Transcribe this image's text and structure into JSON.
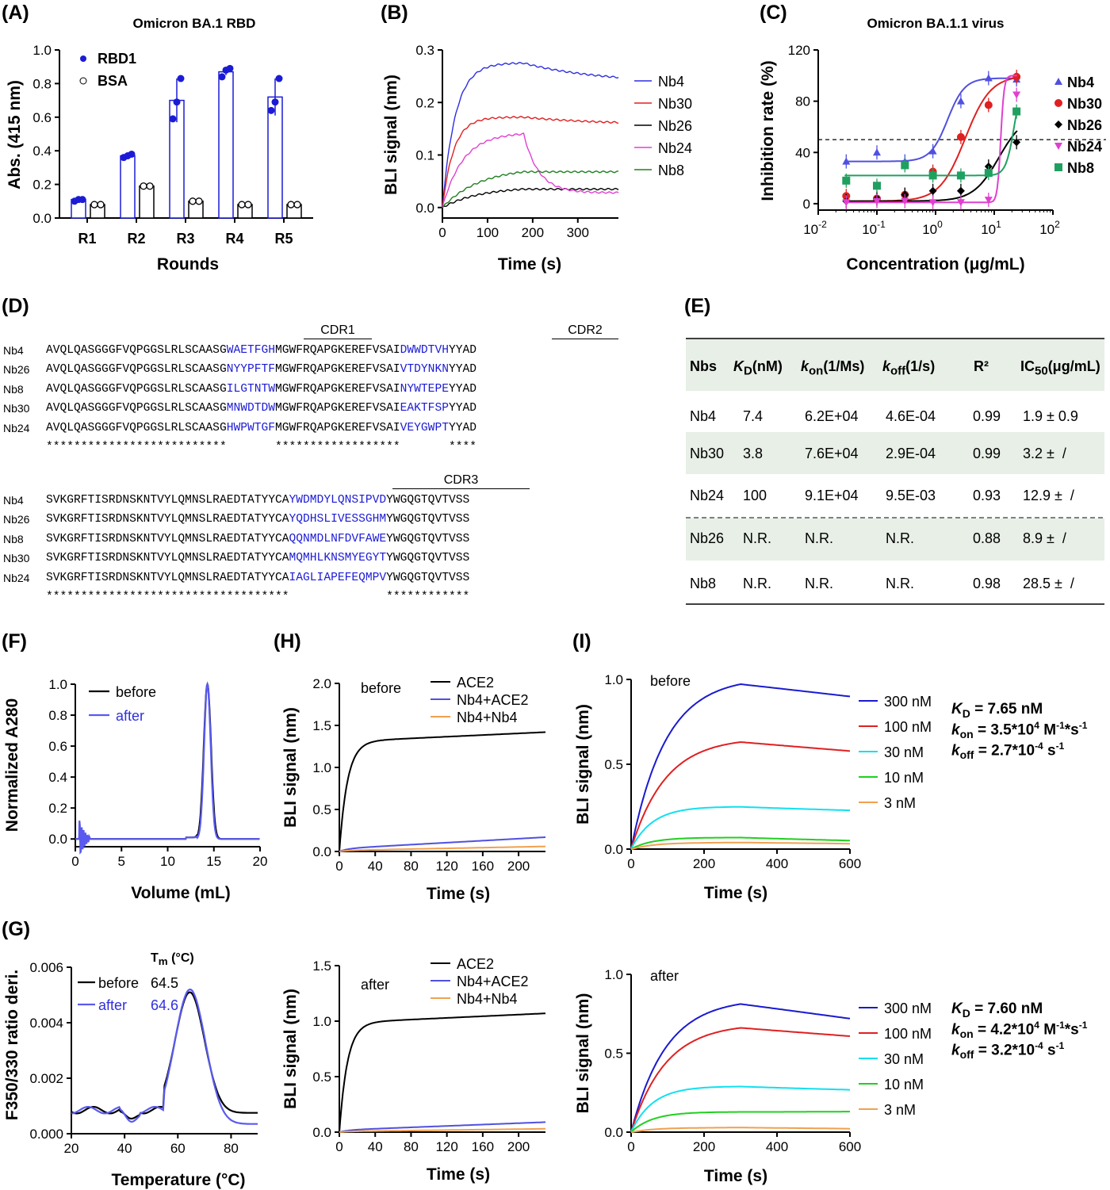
{
  "panels": {
    "A": {
      "label": "(A)",
      "title": "Omicron BA.1 RBD",
      "xlabel": "Rounds",
      "ylabel": "Abs. (415 nm)",
      "yticks": [
        "0.0",
        "0.2",
        "0.4",
        "0.6",
        "0.8",
        "1.0"
      ],
      "legend": [
        "RBD1",
        "BSA"
      ]
    },
    "B": {
      "label": "(B)",
      "xlabel": "Time (s)",
      "ylabel": "BLI signal (nm)",
      "yticks": [
        "0.0",
        "0.1",
        "0.2",
        "0.3"
      ],
      "xticks": [
        "0",
        "100",
        "200",
        "300"
      ],
      "legend": [
        "Nb4",
        "Nb30",
        "Nb26",
        "Nb24",
        "Nb8"
      ]
    },
    "C": {
      "label": "(C)",
      "title": "Omicron BA.1.1 virus",
      "xlabel": "Concentration (μg/mL)",
      "ylabel": "Inhibition rate (%)",
      "yticks": [
        "0",
        "40",
        "80",
        "120"
      ],
      "legend": [
        "Nb4",
        "Nb30",
        "Nb26",
        "Nb24",
        "Nb8"
      ]
    },
    "D": {
      "label": "(D)",
      "cdr1": "CDR1",
      "cdr2": "CDR2",
      "cdr3": "CDR3",
      "rows1": [
        {
          "name": "Nb4",
          "a": "AVQLQASGGGFVQPGGSLRLSCAASG",
          "c1": "WAETFGH",
          "b": "MGWFRQAPGKEREFVSAI",
          "c2": "DWWDTVH",
          "e": "YYAD"
        },
        {
          "name": "Nb26",
          "a": "AVQLQASGGGFVQPGGSLRLSCAASG",
          "c1": "NYYPFTF",
          "b": "MGWFRQAPGKEREFVSAI",
          "c2": "VTDYNKN",
          "e": "YYAD"
        },
        {
          "name": "Nb8",
          "a": "AVQLQASGGGFVQPGGSLRLSCAASG",
          "c1": "ILGTNTW",
          "b": "MGWFRQAPGKEREFVSAI",
          "c2": "NYWTEPE",
          "e": "YYAD"
        },
        {
          "name": "Nb30",
          "a": "AVQLQASGGGFVQPGGSLRLSCAASG",
          "c1": "MNWDTDW",
          "b": "MGWFRQAPGKEREFVSAI",
          "c2": "EAKTFSP",
          "e": "YYAD"
        },
        {
          "name": "Nb24",
          "a": "AVQLQASGGGFVQPGGSLRLSCAASG",
          "c1": "HWPWTGF",
          "b": "MGWFRQAPGKEREFVSAI",
          "c2": "VEYGWPT",
          "e": "YYAD"
        }
      ],
      "cons1": "**************************       ******************       ****",
      "rows2": [
        {
          "name": "Nb4",
          "a": "SVKGRFTISRDNSKNTVYLQMNSLRAEDTATYYCA",
          "c3": "YWDMDYLQNSIPVD",
          "e": "YWGQGTQVTVSS"
        },
        {
          "name": "Nb26",
          "a": "SVKGRFTISRDNSKNTVYLQMNSLRAEDTATYYCA",
          "c3": "YQDHSLIVESSGHM",
          "e": "YWGQGTQVTVSS"
        },
        {
          "name": "Nb8",
          "a": "SVKGRFTISRDNSKNTVYLQMNSLRAEDTATYYCA",
          "c3": "QQNMDLNFDVFAWE",
          "e": "YWGQGTQVTVSS"
        },
        {
          "name": "Nb30",
          "a": "SVKGRFTISRDNSKNTVYLQMNSLRAEDTATYYCA",
          "c3": "MQMHLKNSMYEGYT",
          "e": "YWGQGTQVTVSS"
        },
        {
          "name": "Nb24",
          "a": "SVKGRFTISRDNSKNTVYLQMNSLRAEDTATYYCA",
          "c3": "IAGLIAPEFEQMPV",
          "e": "YWGQGTQVTVSS"
        }
      ],
      "cons2": "***********************************              ************"
    },
    "E": {
      "label": "(E)",
      "headers": [
        "Nbs",
        "K",
        "D",
        "(nM)",
        "k",
        "on",
        "(1/Ms)",
        "k",
        "off",
        "(1/s)",
        "R²",
        "IC",
        "50",
        "(μg/mL)"
      ],
      "rows": [
        [
          "Nb4",
          "7.4",
          "6.2E+04",
          "4.6E-04",
          "0.99",
          "1.9 ± 0.9"
        ],
        [
          "Nb30",
          "3.8",
          "7.6E+04",
          "2.9E-04",
          "0.99",
          "3.2 ±  /"
        ],
        [
          "Nb24",
          "100",
          "9.1E+04",
          "9.5E-03",
          "0.93",
          "12.9 ±  /"
        ],
        [
          "Nb26",
          "N.R.",
          "N.R.",
          "N.R.",
          "0.88",
          "8.9 ±  /"
        ],
        [
          "Nb8",
          "N.R.",
          "N.R.",
          "N.R.",
          "0.98",
          "28.5 ±  /"
        ]
      ]
    },
    "F": {
      "label": "(F)",
      "xlabel": "Volume (mL)",
      "ylabel": "Normalized A280",
      "yticks": [
        "0.0",
        "0.2",
        "0.4",
        "0.6",
        "0.8",
        "1.0"
      ],
      "xticks": [
        "0",
        "5",
        "10",
        "15",
        "20"
      ],
      "legend": [
        "before",
        "after"
      ]
    },
    "G": {
      "label": "(G)",
      "xlabel": "Temperature (°C)",
      "ylabel": "F350/330 ratio deri.",
      "yticks": [
        "0.000",
        "0.002",
        "0.004",
        "0.006"
      ],
      "xticks": [
        "20",
        "40",
        "60",
        "80"
      ],
      "tm_header": "T",
      "tm_sub": "m",
      "tm_unit": " (°C)",
      "legend": [
        "before",
        "after"
      ],
      "tm": [
        "64.5",
        "64.6"
      ]
    },
    "H": {
      "label": "(H)",
      "xlabel": "Time (s)",
      "ylabel": "BLI signal (nm)",
      "state_top": "before",
      "state_bottom": "after",
      "yticks_top": [
        "0.0",
        "0.5",
        "1.0",
        "1.5",
        "2.0"
      ],
      "yticks_bottom": [
        "0.0",
        "0.5",
        "1.0",
        "1.5"
      ],
      "xticks": [
        "0",
        "40",
        "80",
        "120",
        "160",
        "200"
      ],
      "legend": [
        "ACE2",
        "Nb4+ACE2",
        "Nb4+Nb4"
      ]
    },
    "I": {
      "label": "(I)",
      "xlabel": "Time (s)",
      "ylabel": "BLI signal (nm)",
      "state_top": "before",
      "state_bottom": "after",
      "yticks": [
        "0.0",
        "0.5",
        "1.0"
      ],
      "xticks": [
        "0",
        "200",
        "400",
        "600"
      ],
      "legend": [
        "300 nM",
        "100 nM",
        "30 nM",
        "10 nM",
        "3 nM"
      ],
      "fit_top": {
        "kd": " = 7.65 nM",
        "kon_a": " = 3.5*10",
        "kon_e": "4",
        "kon_b": " M",
        "kon_e2": "-1",
        "kon_c": "*s",
        "kon_e3": "-1",
        "koff_a": " = 2.7*10",
        "koff_e": "-4",
        "koff_b": " s",
        "koff_e2": "-1"
      },
      "fit_bottom": {
        "kd": " = 7.60 nM",
        "kon_a": " = 4.2*10",
        "kon_e": "4",
        "kon_b": " M",
        "kon_e2": "-1",
        "kon_c": "*s",
        "kon_e3": "-1",
        "koff_a": " = 3.2*10",
        "koff_e": "-4",
        "koff_b": " s",
        "koff_e2": "-1"
      }
    }
  },
  "colors": {
    "blue": "#2f2fe0",
    "red": "#e02020",
    "black": "#000000",
    "magenta": "#e040d0",
    "green": "#208020",
    "cyan": "#10e0f0",
    "lime": "#20d020",
    "orange": "#f0a050",
    "purple": "#5050e0"
  },
  "chart_data": [
    {
      "panel": "A",
      "type": "bar",
      "categories": [
        "R1",
        "R2",
        "R3",
        "R4",
        "R5"
      ],
      "series": [
        {
          "name": "RBD1",
          "values": [
            0.11,
            0.37,
            0.7,
            0.87,
            0.72
          ],
          "points": [
            [
              0.1,
              0.11,
              0.11
            ],
            [
              0.36,
              0.37,
              0.38
            ],
            [
              0.59,
              0.69,
              0.83
            ],
            [
              0.84,
              0.88,
              0.89
            ],
            [
              0.64,
              0.69,
              0.83
            ]
          ]
        },
        {
          "name": "BSA",
          "values": [
            0.08,
            0.19,
            0.1,
            0.08,
            0.08
          ]
        }
      ],
      "ylim": [
        0,
        1.0
      ]
    },
    {
      "panel": "B",
      "type": "line",
      "xlim": [
        0,
        390
      ],
      "ylim": [
        -0.02,
        0.3
      ],
      "series": [
        {
          "name": "Nb4",
          "peak": 0.275,
          "end": 0.237
        },
        {
          "name": "Nb30",
          "peak": 0.172,
          "end": 0.158
        },
        {
          "name": "Nb26",
          "peak": 0.035,
          "end": 0.035
        },
        {
          "name": "Nb24",
          "peak": 0.14,
          "end": 0.028
        },
        {
          "name": "Nb8",
          "peak": 0.068,
          "end": 0.068
        }
      ]
    },
    {
      "panel": "C",
      "type": "scatter",
      "xscale": "log",
      "xlim": [
        0.01,
        100
      ],
      "ylim": [
        -5,
        120
      ],
      "threshold": 50,
      "x": [
        0.03,
        0.1,
        0.3,
        0.9,
        2.7,
        8,
        24
      ],
      "series": [
        {
          "name": "Nb4",
          "values": [
            33,
            40,
            33,
            41,
            80,
            98,
            97
          ]
        },
        {
          "name": "Nb30",
          "values": [
            6,
            4,
            7,
            25,
            52,
            77,
            99
          ]
        },
        {
          "name": "Nb26",
          "values": [
            2,
            4,
            7,
            10,
            10,
            29,
            48
          ]
        },
        {
          "name": "Nb24",
          "values": [
            1,
            2,
            2,
            1,
            1,
            3,
            85
          ]
        },
        {
          "name": "Nb8",
          "values": [
            18,
            14,
            30,
            22,
            22,
            24,
            72
          ]
        }
      ]
    },
    {
      "panel": "F",
      "type": "line",
      "xlim": [
        0,
        20
      ],
      "ylim": [
        -0.05,
        1.0
      ],
      "series": [
        {
          "name": "before",
          "peak_x": 14.3
        },
        {
          "name": "after",
          "peak_x": 14.3
        }
      ]
    },
    {
      "panel": "G",
      "type": "line",
      "xlim": [
        20,
        90
      ],
      "ylim": [
        0,
        0.006
      ],
      "series": [
        {
          "name": "before",
          "peak_x": 64.5,
          "peak": 0.0051
        },
        {
          "name": "after",
          "peak_x": 64.6,
          "peak": 0.0052
        }
      ]
    },
    {
      "panel": "H-before",
      "type": "line",
      "xlim": [
        0,
        230
      ],
      "ylim": [
        0,
        2.0
      ],
      "series": [
        {
          "name": "ACE2",
          "end": 1.42
        },
        {
          "name": "Nb4+ACE2",
          "end": 0.17
        },
        {
          "name": "Nb4+Nb4",
          "end": 0.06
        }
      ]
    },
    {
      "panel": "H-after",
      "type": "line",
      "xlim": [
        0,
        230
      ],
      "ylim": [
        0,
        1.5
      ],
      "series": [
        {
          "name": "ACE2",
          "end": 1.07
        },
        {
          "name": "Nb4+ACE2",
          "end": 0.09
        },
        {
          "name": "Nb4+Nb4",
          "end": 0.03
        }
      ]
    },
    {
      "panel": "I-before",
      "type": "line",
      "xlim": [
        0,
        600
      ],
      "ylim": [
        0,
        1.0
      ],
      "series": [
        {
          "name": "300 nM",
          "peak": 0.97,
          "end": 0.9
        },
        {
          "name": "100 nM",
          "peak": 0.63,
          "end": 0.58
        },
        {
          "name": "30 nM",
          "peak": 0.25,
          "end": 0.23
        },
        {
          "name": "10 nM",
          "peak": 0.07,
          "end": 0.05
        },
        {
          "name": "3 nM",
          "peak": 0.04,
          "end": 0.03
        }
      ]
    },
    {
      "panel": "I-after",
      "type": "line",
      "xlim": [
        0,
        600
      ],
      "ylim": [
        0,
        1.0
      ],
      "series": [
        {
          "name": "300 nM",
          "peak": 0.81,
          "end": 0.72
        },
        {
          "name": "100 nM",
          "peak": 0.66,
          "end": 0.61
        },
        {
          "name": "30 nM",
          "peak": 0.29,
          "end": 0.27
        },
        {
          "name": "10 nM",
          "peak": 0.13,
          "end": 0.13
        },
        {
          "name": "3 nM",
          "peak": 0.03,
          "end": 0.02
        }
      ]
    }
  ]
}
